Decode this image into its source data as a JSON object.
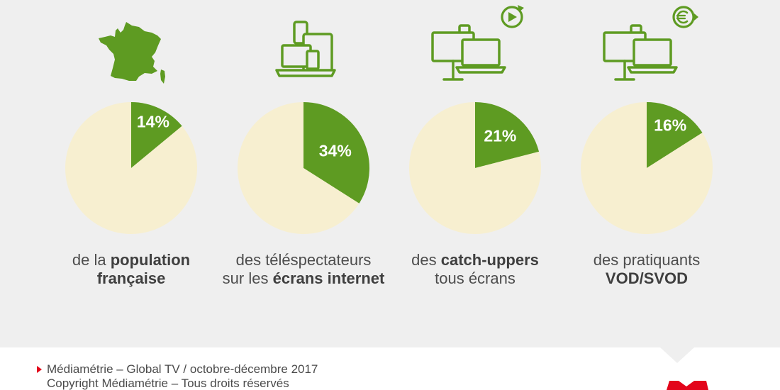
{
  "colors": {
    "panel_background": "#efefef",
    "footer_background": "#ffffff",
    "green": "#5e9b22",
    "pie_remainder": "#f7efd0",
    "label_text": "#ffffff",
    "caption_text": "#4d4d4d",
    "brand_red": "#e3051b"
  },
  "panels": [
    {
      "icon": "france-map-icon"
    },
    {
      "icon": "devices-icon"
    },
    {
      "icon": "catch-up-screens-icon",
      "badge_icon": "replay-play-icon"
    },
    {
      "icon": "vod-screens-icon",
      "badge_icon": "euro-play-icon"
    }
  ],
  "chart_data": [
    {
      "type": "pie",
      "values": [
        14,
        86
      ],
      "data_labels": [
        "14%"
      ],
      "caption": [
        {
          "regular": "de la ",
          "bold": "population"
        },
        {
          "bold": "française"
        }
      ]
    },
    {
      "type": "pie",
      "values": [
        34,
        66
      ],
      "data_labels": [
        "34%"
      ],
      "caption": [
        {
          "regular": "des téléspectateurs"
        },
        {
          "regular": "sur les ",
          "bold": "écrans internet"
        }
      ]
    },
    {
      "type": "pie",
      "values": [
        21,
        79
      ],
      "data_labels": [
        "21%"
      ],
      "caption": [
        {
          "regular": "des ",
          "bold": "catch-uppers"
        },
        {
          "regular": "tous écrans"
        }
      ]
    },
    {
      "type": "pie",
      "values": [
        16,
        84
      ],
      "data_labels": [
        "16%"
      ],
      "caption": [
        {
          "regular": "des pratiquants"
        },
        {
          "bold": "VOD/SVOD"
        }
      ]
    }
  ],
  "footer": {
    "source": "Médiamétrie – Global TV / octobre-décembre 2017",
    "copyright": "Copyright Médiamétrie – Tous droits réservés",
    "bullet_icon": "bullet-arrow-icon",
    "logo": "mediametrie-logo"
  }
}
